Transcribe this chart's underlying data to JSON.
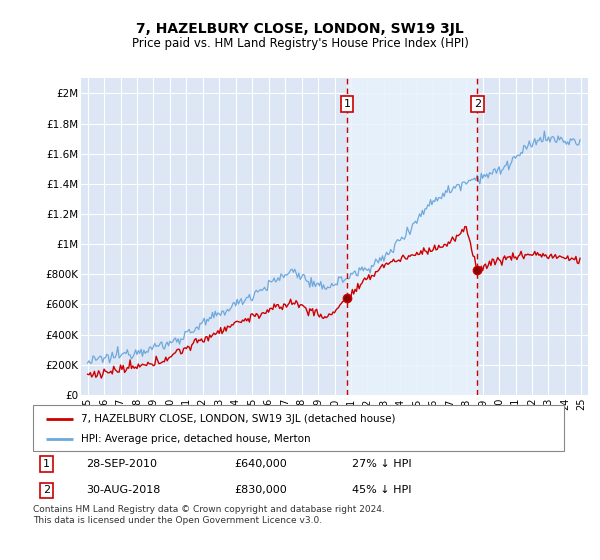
{
  "title": "7, HAZELBURY CLOSE, LONDON, SW19 3JL",
  "subtitle": "Price paid vs. HM Land Registry's House Price Index (HPI)",
  "background_color": "#ffffff",
  "plot_bg_color": "#dce6f5",
  "shade_color": "#daeaf8",
  "grid_color": "#ffffff",
  "ylim": [
    0,
    2100000
  ],
  "yticks": [
    0,
    200000,
    400000,
    600000,
    800000,
    1000000,
    1200000,
    1400000,
    1600000,
    1800000,
    2000000
  ],
  "ytick_labels": [
    "£0",
    "£200K",
    "£400K",
    "£600K",
    "£800K",
    "£1M",
    "£1.2M",
    "£1.4M",
    "£1.6M",
    "£1.8M",
    "£2M"
  ],
  "sale1_year": 2010.75,
  "sale1_price": 640000,
  "sale2_year": 2018.67,
  "sale2_price": 830000,
  "hpi_color": "#6fa8dc",
  "price_color": "#cc0000",
  "dashed_color": "#cc0000",
  "legend_label_red": "7, HAZELBURY CLOSE, LONDON, SW19 3JL (detached house)",
  "legend_label_blue": "HPI: Average price, detached house, Merton",
  "footer": "Contains HM Land Registry data © Crown copyright and database right 2024.\nThis data is licensed under the Open Government Licence v3.0.",
  "sale1_label": "1",
  "sale2_label": "2",
  "sale1_date_str": "28-SEP-2010",
  "sale2_date_str": "30-AUG-2018",
  "sale1_pct": "27% ↓ HPI",
  "sale2_pct": "45% ↓ HPI"
}
